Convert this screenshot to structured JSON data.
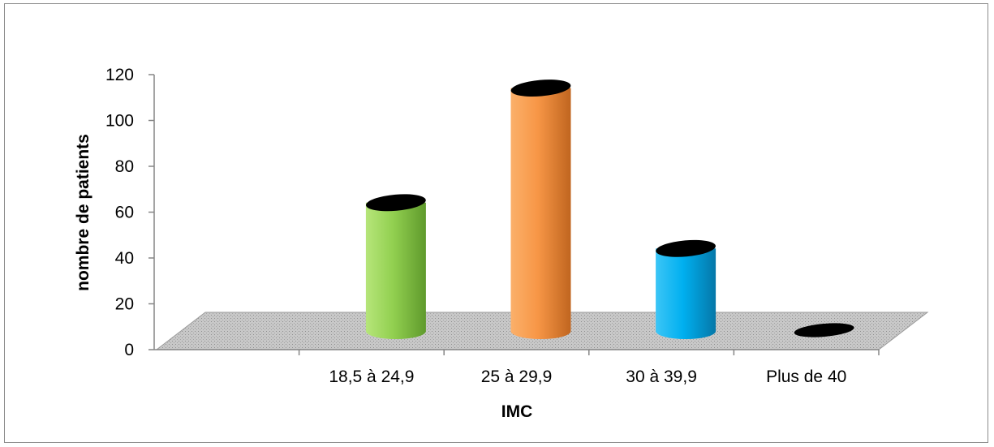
{
  "chart_data": {
    "type": "bar",
    "style": "3d-cylinder",
    "categories": [
      "",
      "18,5 à 24,9",
      "25 à 29,9",
      "30 à 39,9",
      "Plus de 40"
    ],
    "values": [
      0,
      56,
      106,
      36,
      0
    ],
    "colors": [
      "#9dd655",
      "#9dd655",
      "#f7a04a",
      "#16b0ec",
      "#000000"
    ],
    "xlabel": "IMC",
    "ylabel": "nombre de patients",
    "ylim": [
      0,
      120
    ],
    "yticks": [
      "0",
      "20",
      "40",
      "60",
      "80",
      "100",
      "120"
    ],
    "grid": false,
    "legend": "none",
    "floor_pattern": "dotted-gray"
  }
}
